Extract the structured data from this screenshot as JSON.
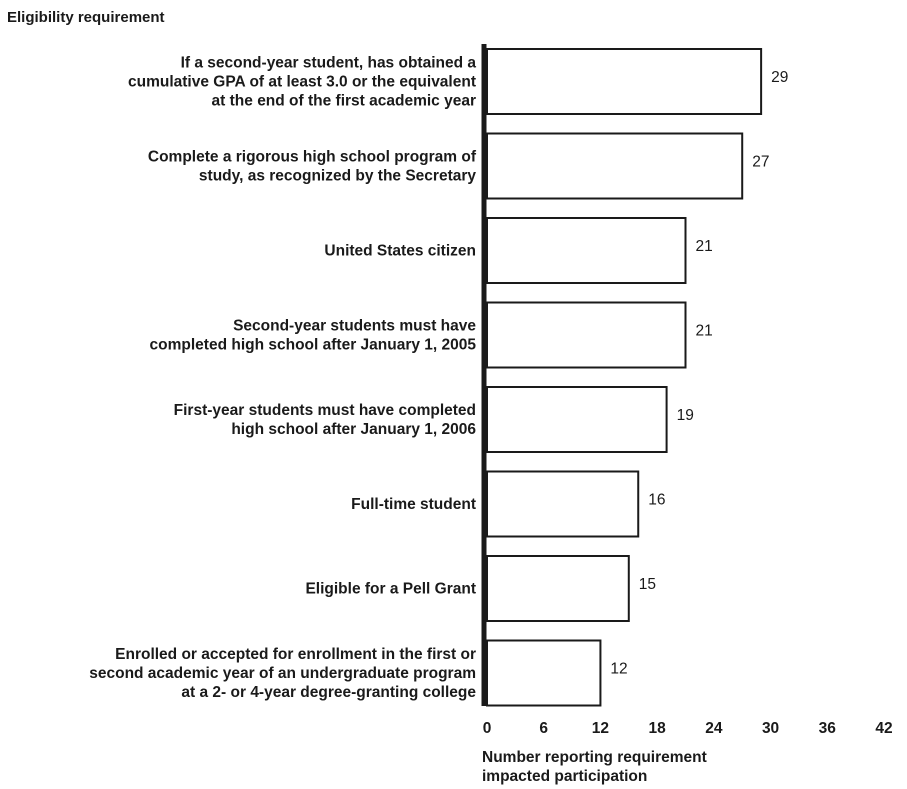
{
  "chart_data": {
    "type": "bar",
    "orientation": "horizontal",
    "title": "",
    "ylabel": "Eligibility requirement",
    "xlabel": [
      "Number reporting requirement",
      "impacted participation"
    ],
    "xlim": [
      0,
      42
    ],
    "xticks": [
      "0",
      "6",
      "12",
      "18",
      "24",
      "30",
      "36",
      "42"
    ],
    "grid": false,
    "categories": [
      [
        "If a second-year student, has obtained a",
        "cumulative GPA of at least 3.0 or the equivalent",
        "at the end of the first  academic year"
      ],
      [
        "Complete a rigorous high school program of",
        "study, as recognized by the Secretary"
      ],
      [
        "United States citizen"
      ],
      [
        "Second-year students must have",
        "completed high school after January 1, 2005"
      ],
      [
        "First-year students must have completed",
        "high school after January 1, 2006"
      ],
      [
        "Full-time student"
      ],
      [
        "Eligible for a Pell Grant"
      ],
      [
        "Enrolled or accepted for enrollment in the first or",
        "second academic year of an undergraduate program",
        "at a 2- or 4-year degree-granting college"
      ]
    ],
    "values": [
      29,
      27,
      21,
      21,
      19,
      16,
      15,
      12
    ],
    "colors": {
      "bar_fill": "#ffffff",
      "bar_stroke": "#1a1a1a",
      "axis": "#1a1a1a"
    }
  }
}
